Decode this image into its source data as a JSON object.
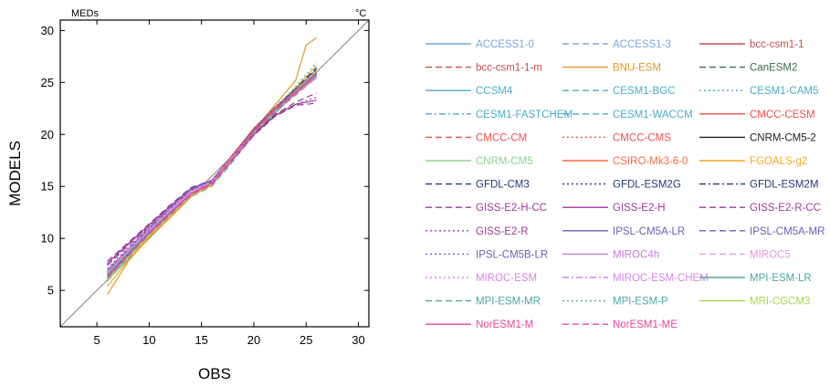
{
  "chart_data": {
    "type": "line",
    "title": "",
    "xlabel": "OBS",
    "ylabel": "MODELS",
    "corner_left_label": "MEDs",
    "corner_right_label": "°C",
    "xlim": [
      1.5,
      31
    ],
    "ylim": [
      1.5,
      31
    ],
    "xticks": [
      5,
      10,
      15,
      20,
      25,
      30
    ],
    "yticks": [
      5,
      10,
      15,
      20,
      25,
      30
    ],
    "grid": false,
    "legend_position": "right",
    "reference_line": "1:1",
    "series": [
      {
        "name": "ACCESS1-0",
        "color": "#7da3e0",
        "dash": "solid",
        "x": [
          6.0,
          8.0,
          10.0,
          12.0,
          14.0,
          16.0,
          18.0,
          20.0,
          22.0,
          24.0,
          26.0
        ],
        "y": [
          6.6,
          8.7,
          10.8,
          12.6,
          14.4,
          15.4,
          17.8,
          20.4,
          22.4,
          24.3,
          26.3
        ]
      },
      {
        "name": "ACCESS1-3",
        "color": "#7da3e0",
        "dash": "dashed",
        "x": [
          6.0,
          8.0,
          10.0,
          12.0,
          14.0,
          16.0,
          18.0,
          20.0,
          22.0,
          24.0,
          26.0
        ],
        "y": [
          6.4,
          8.5,
          10.6,
          12.5,
          14.3,
          15.3,
          17.7,
          20.3,
          22.3,
          24.0,
          25.9
        ]
      },
      {
        "name": "bcc-csm1-1",
        "color": "#c0504d",
        "dash": "solid",
        "x": [
          6.0,
          8.0,
          10.0,
          12.0,
          14.0,
          16.0,
          18.0,
          20.0,
          22.0,
          24.0,
          26.0
        ],
        "y": [
          6.2,
          8.4,
          10.5,
          12.4,
          14.3,
          15.2,
          17.6,
          20.2,
          22.2,
          23.9,
          25.6
        ]
      },
      {
        "name": "bcc-csm1-1-m",
        "color": "#c0504d",
        "dash": "dashed",
        "x": [
          6.0,
          8.0,
          10.0,
          12.0,
          14.0,
          16.0,
          18.0,
          20.0,
          22.0,
          24.0,
          26.0
        ],
        "y": [
          6.3,
          8.4,
          10.5,
          12.4,
          14.2,
          15.1,
          17.6,
          20.1,
          22.1,
          23.8,
          25.5
        ]
      },
      {
        "name": "BNU-ESM",
        "color": "#d99a2b",
        "dash": "solid",
        "x": [
          6.0,
          8.0,
          10.0,
          12.0,
          14.0,
          16.0,
          18.0,
          20.0,
          22.0,
          24.0,
          25.0,
          26.0
        ],
        "y": [
          4.6,
          7.8,
          10.1,
          12.0,
          14.0,
          15.2,
          17.5,
          20.4,
          22.8,
          25.2,
          28.6,
          29.3
        ]
      },
      {
        "name": "CanESM2",
        "color": "#3a6b4a",
        "dash": "dashed",
        "x": [
          6.0,
          8.0,
          10.0,
          12.0,
          14.0,
          16.0,
          18.0,
          20.0,
          22.0,
          24.0,
          26.0
        ],
        "y": [
          6.5,
          8.6,
          10.7,
          12.6,
          14.4,
          15.3,
          17.7,
          20.3,
          22.4,
          24.2,
          26.1
        ]
      },
      {
        "name": "CCSM4",
        "color": "#4bacc6",
        "dash": "solid",
        "x": [
          6.0,
          8.0,
          10.0,
          12.0,
          14.0,
          16.0,
          18.0,
          20.0,
          22.0,
          24.0,
          26.0
        ],
        "y": [
          6.1,
          8.3,
          10.4,
          12.3,
          14.2,
          15.2,
          17.6,
          20.2,
          22.3,
          24.1,
          25.8
        ]
      },
      {
        "name": "CESM1-BGC",
        "color": "#4bacc6",
        "dash": "dashed",
        "x": [
          6.0,
          8.0,
          10.0,
          12.0,
          14.0,
          16.0,
          18.0,
          20.0,
          22.0,
          24.0,
          26.0
        ],
        "y": [
          6.0,
          8.2,
          10.3,
          12.2,
          14.1,
          15.1,
          17.5,
          20.1,
          22.2,
          24.0,
          25.7
        ]
      },
      {
        "name": "CESM1-CAM5",
        "color": "#4bacc6",
        "dash": "dotted",
        "x": [
          6.0,
          8.0,
          10.0,
          12.0,
          14.0,
          16.0,
          18.0,
          20.0,
          22.0,
          24.0,
          26.0
        ],
        "y": [
          6.2,
          8.4,
          10.5,
          12.4,
          14.3,
          15.4,
          17.8,
          20.4,
          22.6,
          24.6,
          26.9
        ]
      },
      {
        "name": "CESM1-FASTCHEM",
        "color": "#4bacc6",
        "dash": "dashdot",
        "x": [
          6.0,
          8.0,
          10.0,
          12.0,
          14.0,
          16.0,
          18.0,
          20.0,
          22.0,
          24.0,
          26.0
        ],
        "y": [
          6.1,
          8.3,
          10.4,
          12.3,
          14.2,
          15.2,
          17.6,
          20.2,
          22.3,
          24.2,
          25.9
        ]
      },
      {
        "name": "CESM1-WACCM",
        "color": "#4bacc6",
        "dash": "dashed",
        "x": [
          6.0,
          8.0,
          10.0,
          12.0,
          14.0,
          16.0,
          18.0,
          20.0,
          22.0,
          24.0,
          26.0
        ],
        "y": [
          5.9,
          8.1,
          10.2,
          12.1,
          14.0,
          15.0,
          17.4,
          20.0,
          22.1,
          23.9,
          25.5
        ]
      },
      {
        "name": "CMCC-CESM",
        "color": "#f04e4e",
        "dash": "solid",
        "x": [
          6.0,
          8.0,
          10.0,
          12.0,
          14.0,
          16.0,
          18.0,
          20.0,
          22.0,
          24.0,
          26.0
        ],
        "y": [
          6.8,
          8.9,
          10.9,
          12.8,
          14.6,
          15.6,
          18.1,
          20.6,
          22.6,
          24.2,
          25.8
        ]
      },
      {
        "name": "CMCC-CM",
        "color": "#f04e4e",
        "dash": "dashed",
        "x": [
          6.0,
          8.0,
          10.0,
          12.0,
          14.0,
          16.0,
          18.0,
          20.0,
          22.0,
          24.0,
          26.0
        ],
        "y": [
          6.5,
          8.6,
          10.6,
          12.5,
          14.4,
          15.3,
          17.8,
          20.3,
          22.4,
          24.1,
          25.9
        ]
      },
      {
        "name": "CMCC-CMS",
        "color": "#f04e4e",
        "dash": "dotted",
        "x": [
          6.0,
          8.0,
          10.0,
          12.0,
          14.0,
          16.0,
          18.0,
          20.0,
          22.0,
          24.0,
          26.0
        ],
        "y": [
          6.4,
          8.5,
          10.6,
          12.5,
          14.3,
          15.3,
          17.7,
          20.3,
          22.3,
          24.0,
          25.8
        ]
      },
      {
        "name": "CNRM-CM5-2",
        "color": "#222222",
        "dash": "solid",
        "x": [
          6.0,
          8.0,
          10.0,
          12.0,
          14.0,
          16.0,
          18.0,
          20.0,
          22.0,
          24.0,
          26.0
        ],
        "y": [
          6.3,
          8.4,
          10.5,
          12.4,
          14.3,
          15.3,
          17.6,
          20.2,
          22.2,
          24.0,
          25.7
        ]
      },
      {
        "name": "CNRM-CM5",
        "color": "#8fd18f",
        "dash": "solid",
        "x": [
          6.0,
          8.0,
          10.0,
          12.0,
          14.0,
          16.0,
          18.0,
          20.0,
          22.0,
          24.0,
          26.0
        ],
        "y": [
          6.2,
          8.3,
          10.4,
          12.3,
          14.2,
          15.2,
          17.6,
          20.1,
          22.2,
          23.9,
          25.6
        ]
      },
      {
        "name": "CSIRO-Mk3-6-0",
        "color": "#f26a4a",
        "dash": "solid",
        "x": [
          6.0,
          8.0,
          10.0,
          12.0,
          14.0,
          16.0,
          18.0,
          20.0,
          22.0,
          24.0,
          26.0
        ],
        "y": [
          7.0,
          9.0,
          11.0,
          12.9,
          14.7,
          15.6,
          18.0,
          20.5,
          22.5,
          24.1,
          25.7
        ]
      },
      {
        "name": "FGOALS-g2",
        "color": "#f5a623",
        "dash": "solid",
        "x": [
          6.0,
          8.0,
          10.0,
          12.0,
          14.0,
          16.0,
          18.0,
          20.0,
          22.0,
          24.0,
          26.0
        ],
        "y": [
          5.4,
          7.9,
          10.2,
          12.1,
          14.1,
          15.1,
          17.6,
          20.3,
          22.5,
          24.5,
          26.6
        ]
      },
      {
        "name": "GFDL-CM3",
        "color": "#1f3a7a",
        "dash": "dashed",
        "x": [
          6.0,
          8.0,
          10.0,
          12.0,
          14.0,
          16.0,
          18.0,
          20.0,
          22.0,
          24.0,
          26.0
        ],
        "y": [
          6.6,
          8.7,
          10.7,
          12.6,
          14.4,
          15.4,
          17.8,
          20.4,
          22.5,
          24.4,
          26.4
        ]
      },
      {
        "name": "GFDL-ESM2G",
        "color": "#1f3a7a",
        "dash": "dotted",
        "x": [
          6.0,
          8.0,
          10.0,
          12.0,
          14.0,
          16.0,
          18.0,
          20.0,
          22.0,
          24.0,
          26.0
        ],
        "y": [
          6.5,
          8.6,
          10.6,
          12.5,
          14.3,
          15.3,
          17.7,
          20.3,
          22.4,
          24.3,
          26.2
        ]
      },
      {
        "name": "GFDL-ESM2M",
        "color": "#1f3a7a",
        "dash": "dashdot",
        "x": [
          6.0,
          8.0,
          10.0,
          12.0,
          14.0,
          16.0,
          18.0,
          20.0,
          22.0,
          24.0,
          26.0
        ],
        "y": [
          6.4,
          8.5,
          10.6,
          12.5,
          14.3,
          15.3,
          17.7,
          20.3,
          22.4,
          24.2,
          26.1
        ]
      },
      {
        "name": "GISS-E2-H-CC",
        "color": "#9b3a9b",
        "dash": "dashed",
        "x": [
          6.0,
          8.0,
          10.0,
          12.0,
          14.0,
          16.0,
          18.0,
          20.0,
          22.0,
          24.0,
          26.0
        ],
        "y": [
          7.8,
          9.6,
          11.4,
          13.2,
          14.9,
          15.6,
          17.8,
          20.1,
          21.9,
          23.1,
          24.0
        ]
      },
      {
        "name": "GISS-E2-H",
        "color": "#9b3a9b",
        "dash": "solid",
        "x": [
          6.0,
          8.0,
          10.0,
          12.0,
          14.0,
          16.0,
          18.0,
          20.0,
          22.0,
          24.0,
          26.0
        ],
        "y": [
          7.6,
          9.5,
          11.3,
          13.1,
          14.8,
          15.5,
          17.7,
          20.0,
          21.8,
          22.9,
          23.3
        ]
      },
      {
        "name": "GISS-E2-R-CC",
        "color": "#9b3a9b",
        "dash": "dashed",
        "x": [
          6.0,
          8.0,
          10.0,
          12.0,
          14.0,
          16.0,
          18.0,
          20.0,
          22.0,
          24.0,
          26.0
        ],
        "y": [
          7.4,
          9.3,
          11.1,
          12.9,
          14.6,
          15.4,
          17.6,
          19.9,
          21.7,
          22.8,
          23.0
        ]
      },
      {
        "name": "GISS-E2-R",
        "color": "#9b3a9b",
        "dash": "dotted",
        "x": [
          6.0,
          8.0,
          10.0,
          12.0,
          14.0,
          16.0,
          18.0,
          20.0,
          22.0,
          24.0,
          26.0
        ],
        "y": [
          7.5,
          9.4,
          11.2,
          13.0,
          14.7,
          15.4,
          17.6,
          19.9,
          21.8,
          22.9,
          23.6
        ]
      },
      {
        "name": "IPSL-CM5A-LR",
        "color": "#6a5fb5",
        "dash": "solid",
        "x": [
          6.0,
          8.0,
          10.0,
          12.0,
          14.0,
          16.0,
          18.0,
          20.0,
          22.0,
          24.0,
          26.0
        ],
        "y": [
          6.9,
          9.0,
          11.0,
          12.9,
          14.7,
          15.6,
          17.9,
          20.4,
          22.4,
          24.2,
          25.9
        ]
      },
      {
        "name": "IPSL-CM5A-MR",
        "color": "#6a5fb5",
        "dash": "dashed",
        "x": [
          6.0,
          8.0,
          10.0,
          12.0,
          14.0,
          16.0,
          18.0,
          20.0,
          22.0,
          24.0,
          26.0
        ],
        "y": [
          6.8,
          8.9,
          10.9,
          12.8,
          14.6,
          15.5,
          17.9,
          20.4,
          22.5,
          24.3,
          26.0
        ]
      },
      {
        "name": "IPSL-CM5B-LR",
        "color": "#6a5fb5",
        "dash": "dotted",
        "x": [
          6.0,
          8.0,
          10.0,
          12.0,
          14.0,
          16.0,
          18.0,
          20.0,
          22.0,
          24.0,
          26.0
        ],
        "y": [
          7.1,
          9.1,
          11.1,
          13.0,
          14.8,
          15.6,
          18.0,
          20.5,
          22.6,
          24.4,
          26.2
        ]
      },
      {
        "name": "MIROC4h",
        "color": "#c77fd6",
        "dash": "solid",
        "x": [
          6.0,
          8.0,
          10.0,
          12.0,
          14.0,
          16.0,
          18.0,
          20.0,
          22.0,
          24.0,
          26.0
        ],
        "y": [
          6.6,
          8.7,
          10.7,
          12.6,
          14.4,
          15.3,
          17.7,
          20.2,
          22.3,
          24.0,
          25.6
        ]
      },
      {
        "name": "MIROC5",
        "color": "#e09ad8",
        "dash": "dashed",
        "x": [
          6.0,
          8.0,
          10.0,
          12.0,
          14.0,
          16.0,
          18.0,
          20.0,
          22.0,
          24.0,
          26.0
        ],
        "y": [
          6.7,
          8.8,
          10.8,
          12.7,
          14.5,
          15.4,
          17.8,
          20.3,
          22.4,
          24.1,
          25.8
        ]
      },
      {
        "name": "MIROC-ESM",
        "color": "#d486e8",
        "dash": "dotted",
        "x": [
          6.0,
          8.0,
          10.0,
          12.0,
          14.0,
          16.0,
          18.0,
          20.0,
          22.0,
          24.0,
          26.0
        ],
        "y": [
          6.9,
          8.9,
          10.9,
          12.8,
          14.6,
          15.5,
          17.9,
          20.3,
          22.3,
          23.9,
          25.4
        ]
      },
      {
        "name": "MIROC-ESM-CHEM",
        "color": "#d486e8",
        "dash": "dashdot",
        "x": [
          6.0,
          8.0,
          10.0,
          12.0,
          14.0,
          16.0,
          18.0,
          20.0,
          22.0,
          24.0,
          26.0
        ],
        "y": [
          7.0,
          9.0,
          11.0,
          12.9,
          14.6,
          15.5,
          17.9,
          20.3,
          22.3,
          23.9,
          25.5
        ]
      },
      {
        "name": "MPI-ESM-LR",
        "color": "#4fa7a0",
        "dash": "solid",
        "x": [
          6.0,
          8.0,
          10.0,
          12.0,
          14.0,
          16.0,
          18.0,
          20.0,
          22.0,
          24.0,
          26.0
        ],
        "y": [
          6.5,
          8.6,
          10.6,
          12.5,
          14.3,
          15.2,
          17.6,
          20.2,
          22.3,
          24.0,
          25.8
        ]
      },
      {
        "name": "MPI-ESM-MR",
        "color": "#4fa7a0",
        "dash": "dashed",
        "x": [
          6.0,
          8.0,
          10.0,
          12.0,
          14.0,
          16.0,
          18.0,
          20.0,
          22.0,
          24.0,
          26.0
        ],
        "y": [
          6.4,
          8.5,
          10.5,
          12.4,
          14.2,
          15.2,
          17.6,
          20.1,
          22.2,
          24.0,
          25.7
        ]
      },
      {
        "name": "MPI-ESM-P",
        "color": "#4fa7a0",
        "dash": "dotted",
        "x": [
          6.0,
          8.0,
          10.0,
          12.0,
          14.0,
          16.0,
          18.0,
          20.0,
          22.0,
          24.0,
          26.0
        ],
        "y": [
          6.5,
          8.6,
          10.6,
          12.5,
          14.3,
          15.2,
          17.6,
          20.2,
          22.3,
          24.1,
          25.8
        ]
      },
      {
        "name": "MRI-CGCM3",
        "color": "#a6d94a",
        "dash": "solid",
        "x": [
          6.0,
          8.0,
          10.0,
          12.0,
          14.0,
          16.0,
          18.0,
          20.0,
          22.0,
          24.0,
          26.0
        ],
        "y": [
          6.0,
          8.2,
          10.3,
          12.3,
          14.2,
          15.2,
          17.6,
          20.2,
          22.3,
          24.2,
          26.1
        ]
      },
      {
        "name": "NorESM1-M",
        "color": "#e8459e",
        "dash": "solid",
        "x": [
          6.0,
          8.0,
          10.0,
          12.0,
          14.0,
          16.0,
          18.0,
          20.0,
          22.0,
          24.0,
          26.0
        ],
        "y": [
          6.3,
          8.4,
          10.5,
          12.4,
          14.3,
          15.3,
          17.7,
          20.3,
          22.4,
          24.1,
          25.9
        ]
      },
      {
        "name": "NorESM1-ME",
        "color": "#e8459e",
        "dash": "dashed",
        "x": [
          6.0,
          8.0,
          10.0,
          12.0,
          14.0,
          16.0,
          18.0,
          20.0,
          22.0,
          24.0,
          26.0
        ],
        "y": [
          6.2,
          8.3,
          10.4,
          12.3,
          14.2,
          15.2,
          17.6,
          20.2,
          22.3,
          24.0,
          25.8
        ]
      }
    ]
  }
}
